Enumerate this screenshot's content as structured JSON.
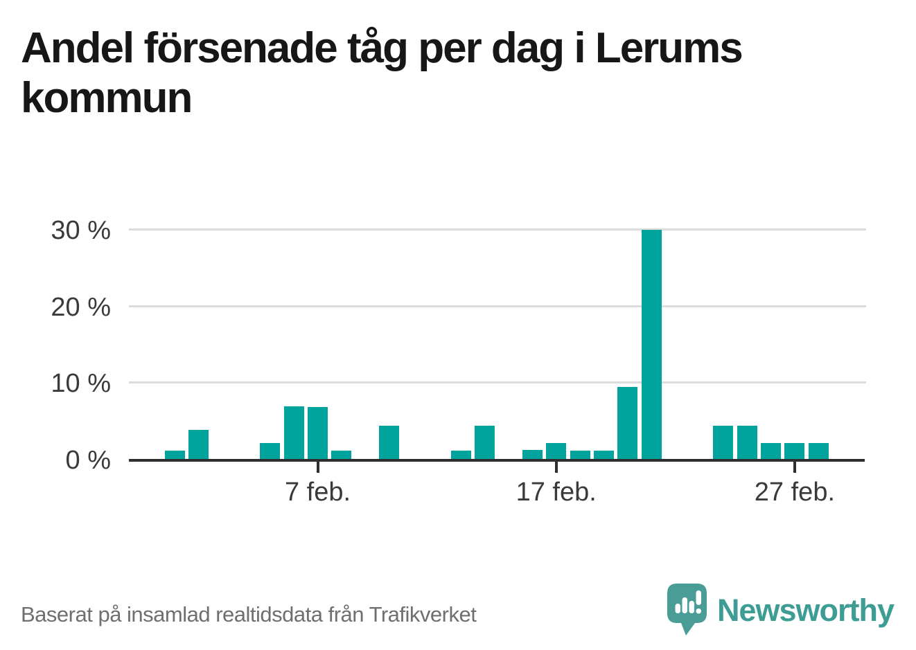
{
  "header": {
    "title_line1": "Andel försenade tåg per dag i Lerums",
    "title_line2": "kommun"
  },
  "footer": {
    "source_note": "Baserat på insamlad realtidsdata från Trafikverket",
    "brand_name": "Newsworthy"
  },
  "colors": {
    "bar": "#00a49c",
    "axis": "#2f2f2f",
    "grid": "#dcdcdc",
    "title_text": "#171717",
    "axis_text": "#3a3a3a",
    "footer_text": "#6f6f6f",
    "logo_mark": "#4a9c96",
    "logo_text": "#3d9d95"
  },
  "chart_data": {
    "type": "bar",
    "title": "Andel försenade tåg per dag i Lerums kommun",
    "xlabel": "",
    "ylabel": "",
    "unit": "%",
    "x_unit": "dag i februari",
    "ylim": [
      0,
      32
    ],
    "grid": true,
    "points": [
      {
        "day": 1,
        "value": 1.1
      },
      {
        "day": 2,
        "value": 3.8
      },
      {
        "day": 5,
        "value": 2.1
      },
      {
        "day": 6,
        "value": 6.9
      },
      {
        "day": 7,
        "value": 6.8
      },
      {
        "day": 8,
        "value": 1.1
      },
      {
        "day": 10,
        "value": 4.3
      },
      {
        "day": 13,
        "value": 1.1
      },
      {
        "day": 14,
        "value": 4.3
      },
      {
        "day": 16,
        "value": 1.2
      },
      {
        "day": 17,
        "value": 2.1
      },
      {
        "day": 18,
        "value": 1.1
      },
      {
        "day": 19,
        "value": 1.1
      },
      {
        "day": 20,
        "value": 9.4
      },
      {
        "day": 21,
        "value": 29.9
      },
      {
        "day": 24,
        "value": 4.3
      },
      {
        "day": 25,
        "value": 4.3
      },
      {
        "day": 26,
        "value": 2.1
      },
      {
        "day": 27,
        "value": 2.1
      },
      {
        "day": 28,
        "value": 2.1
      }
    ],
    "missing_days": [
      3,
      4,
      9,
      11,
      12,
      15,
      22,
      23
    ],
    "x_ticks": [
      {
        "day": 7,
        "label": "7 feb."
      },
      {
        "day": 17,
        "label": "17 feb."
      },
      {
        "day": 27,
        "label": "27 feb."
      }
    ],
    "y_ticks": [
      {
        "value": 0,
        "label": "0 %"
      },
      {
        "value": 10,
        "label": "10 %"
      },
      {
        "value": 20,
        "label": "20 %"
      },
      {
        "value": 30,
        "label": "30 %"
      }
    ]
  }
}
